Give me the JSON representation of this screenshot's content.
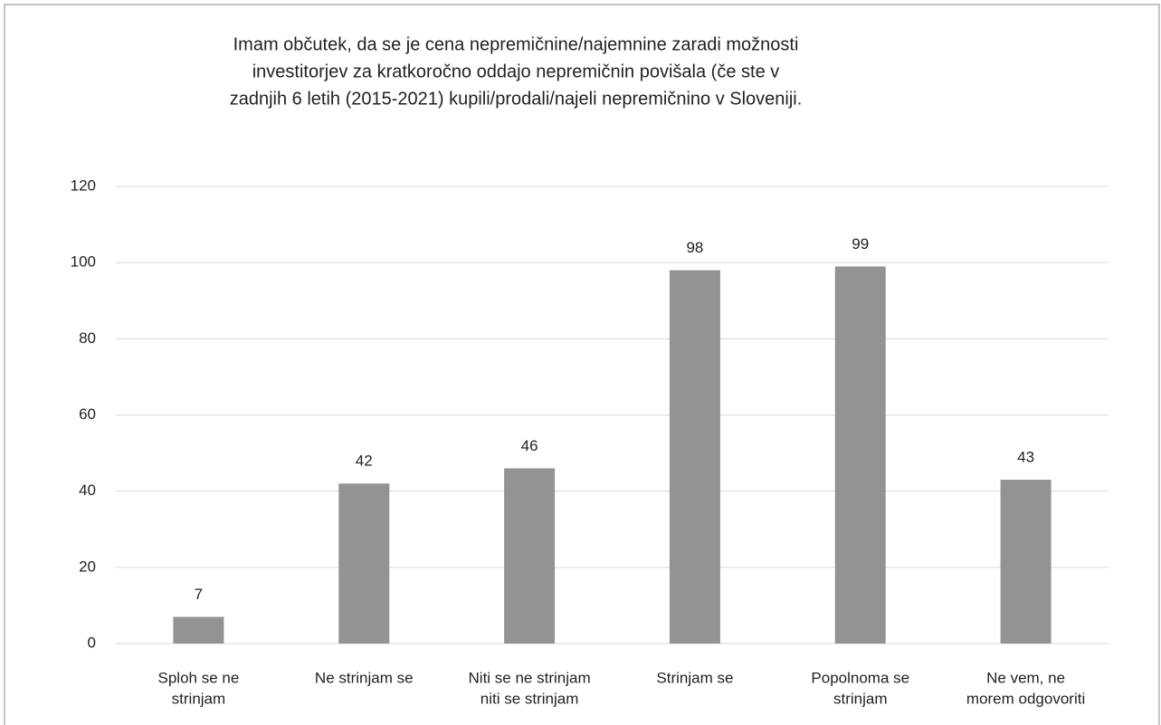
{
  "chart_data": {
    "type": "bar",
    "title": [
      "Imam občutek, da se je cena nepremičnine/najemnine zaradi možnosti",
      "investitorjev za kratkoročno oddajo nepremičnin povišala (če ste v",
      "zadnjih 6 letih (2015-2021) kupili/prodali/najeli nepremičnino v Sloveniji."
    ],
    "categories": [
      [
        "Sploh se ne",
        "strinjam"
      ],
      [
        "Ne strinjam se"
      ],
      [
        "Niti se ne strinjam",
        "niti se strinjam"
      ],
      [
        "Strinjam se"
      ],
      [
        "Popolnoma se",
        "strinjam"
      ],
      [
        "Ne vem, ne",
        "morem odgovoriti"
      ]
    ],
    "values": [
      7,
      42,
      46,
      98,
      99,
      43
    ],
    "color": "#939395",
    "ylim": [
      0,
      120
    ],
    "yticks": [
      0,
      20,
      40,
      60,
      80,
      100,
      120
    ],
    "grid": true
  }
}
